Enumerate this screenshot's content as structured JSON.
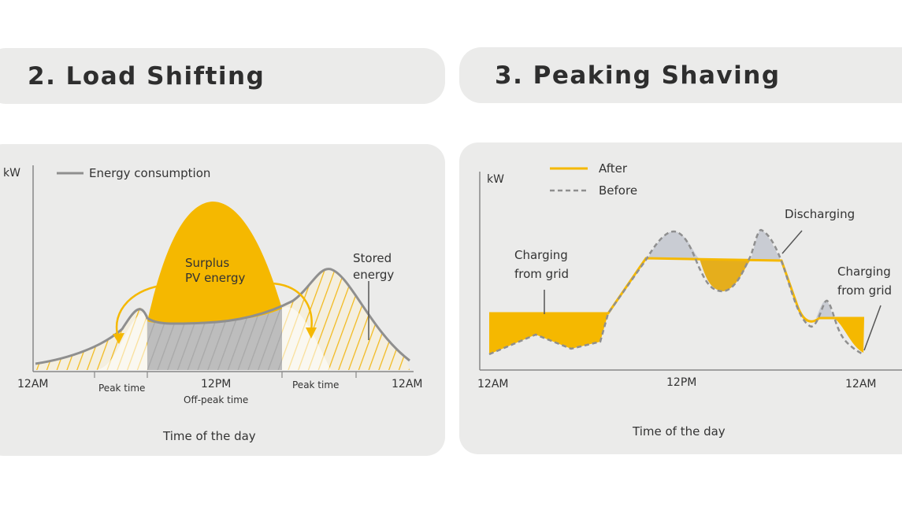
{
  "left": {
    "title": "2. Load Shifting",
    "y_unit": "kW",
    "legend_label": "Energy consumption",
    "surplus_label_1": "Surplus",
    "surplus_label_2": "PV energy",
    "stored_label_1": "Stored",
    "stored_label_2": "energy",
    "x_start": "12AM",
    "x_mid": "12PM",
    "x_end": "12AM",
    "peak_left": "Peak time",
    "peak_right": "Peak time",
    "offpeak": "Off-peak time",
    "x_title": "Time of the day"
  },
  "right": {
    "title": "3. Peaking Shaving",
    "y_unit": "kW",
    "legend_after": "After",
    "legend_before": "Before",
    "discharging": "Discharging",
    "charging_grid_left_1": "Charging",
    "charging_grid_left_2": "from grid",
    "charging_grid_right_1": "Charging",
    "charging_grid_right_2": "from grid",
    "x_start": "12AM",
    "x_mid": "12PM",
    "x_end": "12AM",
    "x_title": "Time of the day"
  },
  "colors": {
    "panel_bg": "#ebebea",
    "yellow": "#f5b800",
    "dark_yellow": "#e5ae1c",
    "gray_line": "#8f8f8f",
    "gray_fill": "#c9ccd3",
    "hatched_fill": "#bdbdbd",
    "text": "#333333"
  }
}
